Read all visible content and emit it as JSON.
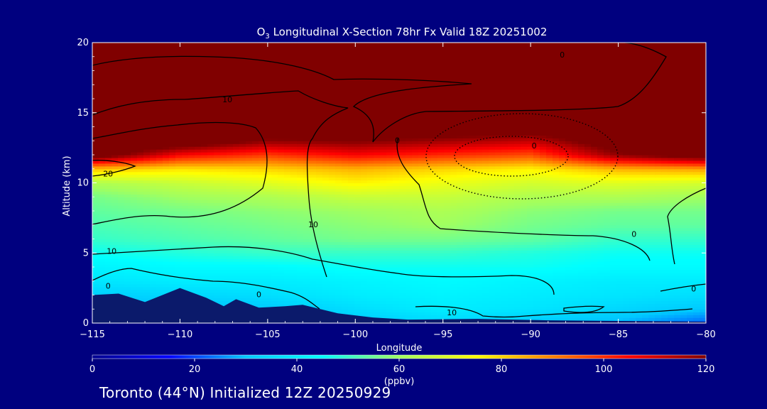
{
  "chart_data": {
    "type": "heatmap",
    "title_prefix": "O",
    "title_sub": "3",
    "title_rest": " Longitudinal X-Section 78hr  Fx Valid 18Z 20251002",
    "xlabel": "Longitude",
    "ylabel": "Altitude (km)",
    "xlim": [
      -115,
      -80
    ],
    "ylim": [
      0,
      20
    ],
    "x_ticks": [
      -115,
      -110,
      -105,
      -100,
      -95,
      -90,
      -85,
      -80
    ],
    "x_tick_labels": [
      "−115",
      "−110",
      "−105",
      "−100",
      "−95",
      "−90",
      "−85",
      "−80"
    ],
    "y_ticks": [
      0,
      5,
      10,
      15,
      20
    ],
    "y_tick_labels": [
      "0",
      "5",
      "10",
      "15",
      "20"
    ],
    "colorbar": {
      "min": 0,
      "max": 120,
      "ticks": [
        0,
        20,
        40,
        60,
        80,
        100,
        120
      ],
      "tick_labels": [
        "0",
        "20",
        "40",
        "60",
        "80",
        "100",
        "120"
      ],
      "unit_label": "(ppbv)",
      "colormap": [
        "#00008f",
        "#0000ff",
        "#00c8ff",
        "#00ffff",
        "#a0ff60",
        "#ffff00",
        "#ff8000",
        "#ff0000",
        "#800000"
      ]
    },
    "contour_labels": [
      {
        "text": "0",
        "lon": -88.2,
        "alt": 19.1
      },
      {
        "text": "10",
        "lon": -107.3,
        "alt": 15.9
      },
      {
        "text": "20",
        "lon": -114.1,
        "alt": 10.6
      },
      {
        "text": "0",
        "lon": -97.6,
        "alt": 13.0
      },
      {
        "text": "0",
        "lon": -89.8,
        "alt": 12.6
      },
      {
        "text": "10",
        "lon": -102.4,
        "alt": 7.0
      },
      {
        "text": "0",
        "lon": -84.1,
        "alt": 6.3
      },
      {
        "text": "10",
        "lon": -113.9,
        "alt": 5.1
      },
      {
        "text": "0",
        "lon": -114.1,
        "alt": 2.6
      },
      {
        "text": "0",
        "lon": -105.5,
        "alt": 2.0
      },
      {
        "text": "0",
        "lon": -80.7,
        "alt": 2.4
      },
      {
        "text": "10",
        "lon": -94.5,
        "alt": 0.7
      }
    ],
    "ozone_grid": {
      "lon": [
        -115,
        -110,
        -105,
        -100,
        -95,
        -90,
        -85,
        -80
      ],
      "alt": [
        0,
        1,
        2,
        3,
        4,
        5,
        6,
        7,
        8,
        9,
        10,
        11,
        12,
        13,
        14,
        15,
        16,
        17,
        18,
        19,
        20
      ],
      "values": [
        [
          20,
          22,
          24,
          30,
          34,
          30,
          28,
          22
        ],
        [
          26,
          28,
          30,
          36,
          40,
          38,
          34,
          30
        ],
        [
          32,
          34,
          36,
          40,
          42,
          40,
          38,
          36
        ],
        [
          38,
          40,
          40,
          42,
          44,
          42,
          40,
          40
        ],
        [
          42,
          44,
          44,
          46,
          46,
          46,
          44,
          44
        ],
        [
          46,
          48,
          50,
          50,
          50,
          48,
          46,
          46
        ],
        [
          50,
          52,
          54,
          56,
          56,
          54,
          50,
          50
        ],
        [
          52,
          54,
          56,
          58,
          60,
          56,
          54,
          54
        ],
        [
          54,
          56,
          58,
          60,
          62,
          58,
          56,
          56
        ],
        [
          56,
          60,
          62,
          66,
          66,
          62,
          62,
          60
        ],
        [
          62,
          66,
          70,
          76,
          72,
          68,
          70,
          68
        ],
        [
          82,
          78,
          80,
          84,
          80,
          76,
          84,
          86
        ],
        [
          128,
          105,
          98,
          105,
          100,
          96,
          118,
          128
        ],
        [
          130,
          130,
          118,
          120,
          116,
          112,
          128,
          130
        ],
        [
          130,
          130,
          130,
          130,
          130,
          128,
          130,
          130
        ],
        [
          130,
          130,
          130,
          130,
          130,
          130,
          130,
          130
        ],
        [
          130,
          130,
          130,
          130,
          130,
          130,
          130,
          130
        ],
        [
          130,
          130,
          130,
          130,
          130,
          130,
          130,
          130
        ],
        [
          130,
          130,
          130,
          130,
          130,
          130,
          130,
          130
        ],
        [
          130,
          130,
          130,
          130,
          130,
          130,
          130,
          130
        ],
        [
          130,
          130,
          130,
          130,
          130,
          130,
          130,
          130
        ]
      ]
    },
    "terrain_profile": [
      {
        "lon": -115,
        "alt": 2.0
      },
      {
        "lon": -113.5,
        "alt": 2.1
      },
      {
        "lon": -112,
        "alt": 1.5
      },
      {
        "lon": -110,
        "alt": 2.5
      },
      {
        "lon": -108.5,
        "alt": 1.8
      },
      {
        "lon": -107.5,
        "alt": 1.2
      },
      {
        "lon": -106.8,
        "alt": 1.7
      },
      {
        "lon": -105.5,
        "alt": 1.1
      },
      {
        "lon": -104,
        "alt": 1.2
      },
      {
        "lon": -103,
        "alt": 1.3
      },
      {
        "lon": -101,
        "alt": 0.7
      },
      {
        "lon": -99,
        "alt": 0.4
      },
      {
        "lon": -97,
        "alt": 0.25
      },
      {
        "lon": -93,
        "alt": 0.3
      },
      {
        "lon": -89,
        "alt": 0.2
      },
      {
        "lon": -85,
        "alt": 0.15
      },
      {
        "lon": -80,
        "alt": 0.1
      }
    ]
  },
  "footer": {
    "text": "Toronto (44°N) Initialized 12Z 20250929"
  },
  "colors": {
    "background": "#00007f",
    "terrain": "#0b1a6b",
    "contour": "#000000",
    "text": "#ffffff"
  }
}
